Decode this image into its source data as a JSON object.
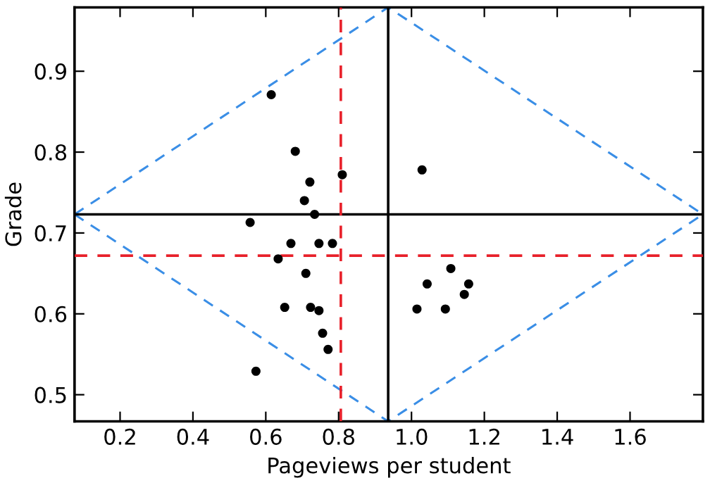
{
  "chart_data": {
    "type": "scatter",
    "xlabel": "Pageviews per student",
    "ylabel": "Grade",
    "xlim": [
      0.075,
      1.8
    ],
    "ylim": [
      0.467,
      0.979
    ],
    "xticks": [
      0.2,
      0.4,
      0.6,
      0.8,
      {
        "value": 1,
        "label": "1.0"
      },
      1.2,
      1.4,
      1.6
    ],
    "yticks": [
      0.5,
      0.6,
      0.7,
      0.8,
      0.9
    ],
    "grid": false,
    "legend": false,
    "series": [
      {
        "type": "scatter",
        "color": "#000000",
        "marker": "circle",
        "x": [
          0.615,
          0.681,
          0.81,
          0.721,
          0.706,
          0.734,
          0.557,
          0.669,
          0.746,
          0.783,
          0.634,
          0.71,
          0.652,
          0.723,
          0.746,
          0.756,
          0.771,
          0.573,
          1.029,
          1.108,
          1.043,
          1.157,
          1.145,
          1.015,
          1.093
        ],
        "values": [
          0.871,
          0.801,
          0.772,
          0.763,
          0.74,
          0.723,
          0.713,
          0.687,
          0.687,
          0.687,
          0.668,
          0.65,
          0.608,
          0.608,
          0.604,
          0.576,
          0.556,
          0.529,
          0.778,
          0.656,
          0.637,
          0.637,
          0.624,
          0.606,
          0.606
        ]
      },
      {
        "type": "line",
        "color": "#3a8ee6",
        "line_style": "dashed",
        "marker": "none",
        "x": [
          0.075,
          0.936,
          1.8
        ],
        "values": [
          0.723,
          0.979,
          0.723
        ]
      },
      {
        "type": "line",
        "color": "#3a8ee6",
        "line_style": "dashed",
        "marker": "none",
        "x": [
          0.075,
          0.936,
          1.8
        ],
        "values": [
          0.723,
          0.467,
          0.723
        ]
      }
    ],
    "ref_lines": [
      {
        "axis": "x",
        "value": 0.936,
        "color": "#000000",
        "line_style": "solid"
      },
      {
        "axis": "y",
        "value": 0.723,
        "color": "#000000",
        "line_style": "solid"
      },
      {
        "axis": "x",
        "value": 0.806,
        "color": "#e8202a",
        "line_style": "dashed"
      },
      {
        "axis": "y",
        "value": 0.672,
        "color": "#e8202a",
        "line_style": "dashed"
      }
    ]
  }
}
